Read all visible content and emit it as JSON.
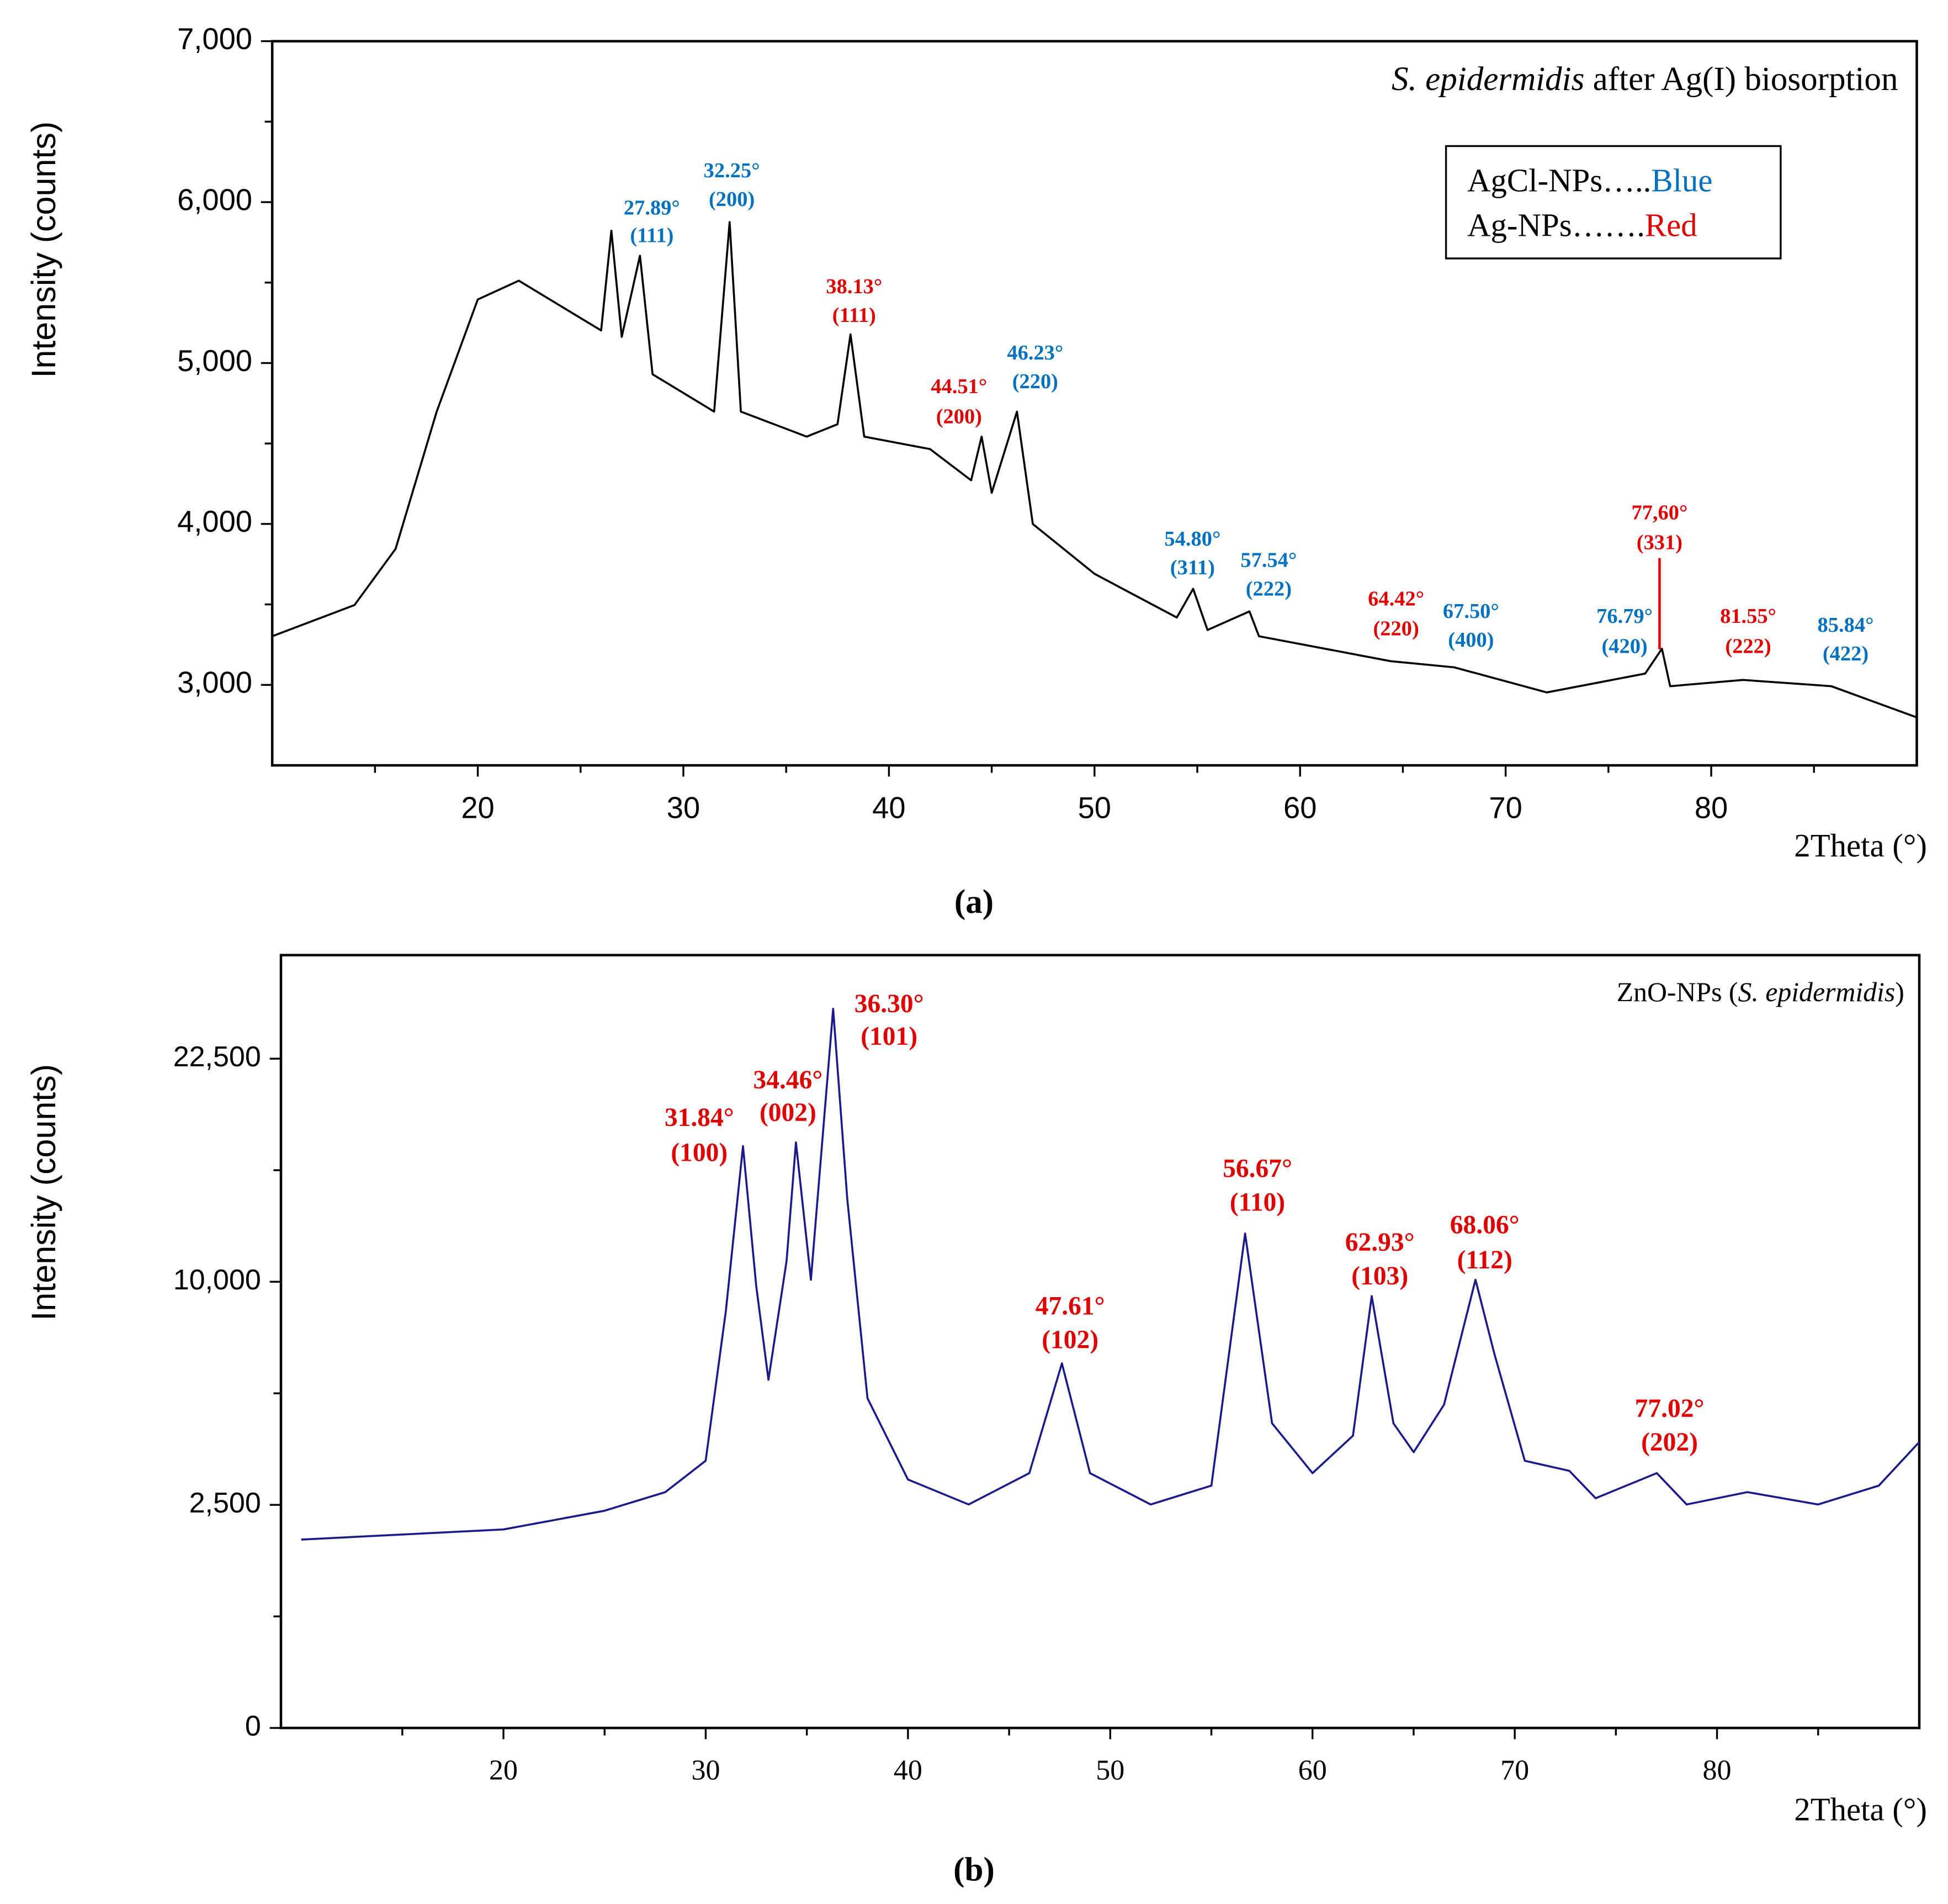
{
  "chart_data": [
    {
      "type": "line",
      "title": [
        {
          "text": "S. epidermidis",
          "italic": true
        },
        {
          "text": " after Ag(I) biosorption"
        }
      ],
      "caption": "(a)",
      "xlabel": "2Theta (°)",
      "ylabel": "Intensity (counts)",
      "xlim": [
        10,
        90
      ],
      "ylim": [
        2500,
        7000
      ],
      "xticks": [
        20,
        30,
        40,
        50,
        60,
        70,
        80
      ],
      "minor_xticks": [
        15,
        25,
        35,
        45,
        55,
        65,
        75,
        85
      ],
      "yticks": [
        {
          "value": 3000,
          "label": "3,000"
        },
        {
          "value": 4000,
          "label": "4,000"
        },
        {
          "value": 5000,
          "label": "5,000"
        },
        {
          "value": 6000,
          "label": "6,000"
        },
        {
          "value": 7000,
          "label": "7,000"
        }
      ],
      "minor_yticks": [
        3500,
        4500,
        5500,
        6500
      ],
      "legend": [
        {
          "text": "AgCl-NPs…..",
          "color_name": "Blue",
          "color": "#0070c0"
        },
        {
          "text": "Ag-NPs…….",
          "color_name": "Red",
          "color": "#e00000"
        }
      ],
      "series": [
        {
          "color": "#000000",
          "x": [
            10,
            14,
            16,
            18,
            20,
            22,
            24,
            26,
            26.5,
            27,
            27.89,
            28.5,
            31.5,
            32.25,
            32.8,
            36,
            37.5,
            38.13,
            38.8,
            42,
            44,
            44.51,
            45,
            46.23,
            47,
            50,
            54,
            54.8,
            55.5,
            57.54,
            58,
            64.42,
            67.5,
            72,
            76.79,
            77.6,
            78,
            81.55,
            85.84,
            90
          ],
          "values": [
            3302,
            3496,
            3845,
            4698,
            5395,
            5512,
            5357,
            5202,
            5822,
            5163,
            5667,
            4930,
            4698,
            5876,
            4698,
            4543,
            4620,
            5178,
            4543,
            4465,
            4271,
            4543,
            4194,
            4698,
            4000,
            3690,
            3419,
            3597,
            3341,
            3457,
            3302,
            3147,
            3109,
            2953,
            3070,
            3225,
            2992,
            3031,
            2992,
            2798
          ]
        }
      ],
      "annotations": [
        {
          "angle": "27.89°",
          "hkl": "(111)",
          "color": "#0070c0"
        },
        {
          "angle": "32.25°",
          "hkl": "(200)",
          "color": "#0070c0"
        },
        {
          "angle": "38.13°",
          "hkl": "(111)",
          "color": "#e00000"
        },
        {
          "angle": "44.51°",
          "hkl": "(200)",
          "color": "#e00000"
        },
        {
          "angle": "46.23°",
          "hkl": "(220)",
          "color": "#0070c0"
        },
        {
          "angle": "54.80°",
          "hkl": "(311)",
          "color": "#0070c0"
        },
        {
          "angle": "57.54°",
          "hkl": "(222)",
          "color": "#0070c0"
        },
        {
          "angle": "64.42°",
          "hkl": "(220)",
          "color": "#e00000"
        },
        {
          "angle": "67.50°",
          "hkl": "(400)",
          "color": "#0070c0"
        },
        {
          "angle": "76.79°",
          "hkl": "(420)",
          "color": "#0070c0"
        },
        {
          "angle": "77,60°",
          "hkl": "(331)",
          "color": "#e00000"
        },
        {
          "angle": "81.55°",
          "hkl": "(222)",
          "color": "#e00000"
        },
        {
          "angle": "85.84°",
          "hkl": "(422)",
          "color": "#0070c0"
        }
      ]
    },
    {
      "type": "line",
      "yscale": "sqrt",
      "title": [
        {
          "text": "ZnO-NPs ("
        },
        {
          "text": "S. epidermidis",
          "italic": true
        },
        {
          "text": ")"
        }
      ],
      "caption": "(b)",
      "xlabel": "2Theta (°)",
      "ylabel": "Intensity (counts)",
      "xlim": [
        9,
        90
      ],
      "ylim": [
        0,
        30000
      ],
      "xticks": [
        20,
        30,
        40,
        50,
        60,
        70,
        80
      ],
      "minor_xticks": [
        15,
        25,
        35,
        45,
        55,
        65,
        75,
        85
      ],
      "yticks": [
        0,
        {
          "value": 2500,
          "label": "2,500"
        },
        {
          "value": 10000,
          "label": "10,000"
        },
        {
          "value": 22500,
          "label": "22,500"
        }
      ],
      "minor_yticks": [
        625,
        5625,
        15625
      ],
      "series": [
        {
          "color": "#1a1a8c",
          "x": [
            10,
            20,
            25,
            28,
            30,
            31,
            31.84,
            32.5,
            33.1,
            34,
            34.46,
            35.2,
            36.3,
            37,
            38,
            40,
            43,
            46,
            47.61,
            49,
            52,
            55,
            56.67,
            58,
            60,
            62,
            62.93,
            64,
            65,
            66.5,
            68.06,
            69,
            70.5,
            72.7,
            74,
            77.02,
            78.5,
            81.5,
            85,
            88,
            90
          ],
          "values": [
            1784,
            1980,
            2370,
            2795,
            3585,
            8740,
            17000,
            9810,
            6090,
            10950,
            17220,
            10090,
            25980,
            14070,
            5460,
            3100,
            2510,
            3260,
            6675,
            3260,
            2510,
            2950,
            12280,
            4660,
            3260,
            4290,
            9370,
            4660,
            3820,
            5250,
            10090,
            7000,
            3585,
            3320,
            2650,
            3260,
            2510,
            2795,
            2510,
            2950,
            4105
          ]
        }
      ],
      "annotations": [
        {
          "angle": "31.84°",
          "hkl": "(100)",
          "color": "#e00000"
        },
        {
          "angle": "34.46°",
          "hkl": "(002)",
          "color": "#e00000"
        },
        {
          "angle": "36.30°",
          "hkl": "(101)",
          "color": "#e00000"
        },
        {
          "angle": "47.61°",
          "hkl": "(102)",
          "color": "#e00000"
        },
        {
          "angle": "56.67°",
          "hkl": "(110)",
          "color": "#e00000"
        },
        {
          "angle": "62.93°",
          "hkl": "(103)",
          "color": "#e00000"
        },
        {
          "angle": "68.06°",
          "hkl": "(112)",
          "color": "#e00000"
        },
        {
          "angle": "77.02°",
          "hkl": "(202)",
          "color": "#e00000"
        }
      ]
    }
  ]
}
